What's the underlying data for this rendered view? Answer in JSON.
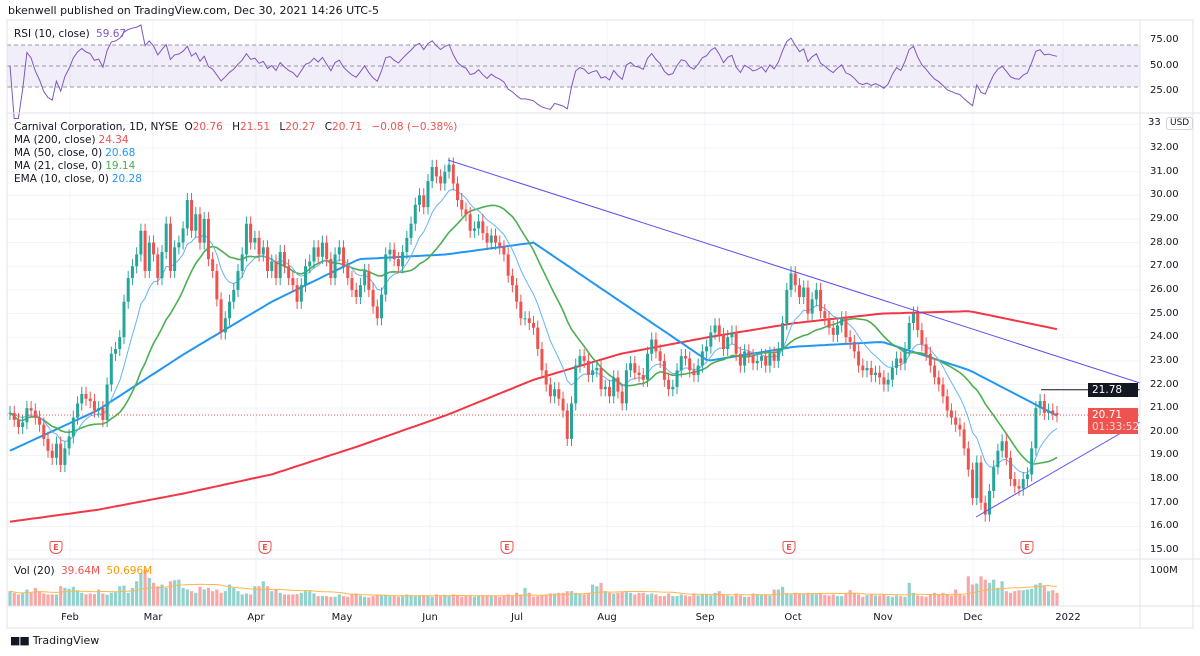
{
  "header": {
    "published": "bkenwell published on TradingView.com, Dec 30, 2021 14:26 UTC-5"
  },
  "rsi_legend": {
    "label": "RSI (10, close)",
    "value": "59.67"
  },
  "main_legend": {
    "symbol": "Carnival Corporation, 1D, NYSE",
    "o_label": "O",
    "o": "20.76",
    "h_label": "H",
    "h": "21.51",
    "l_label": "L",
    "l": "20.27",
    "c_label": "C",
    "c": "20.71",
    "change": "−0.08 (−0.38%)",
    "ma200_label": "MA (200, close)",
    "ma200": "24.34",
    "ma50_label": "MA (50, close, 0)",
    "ma50": "20.68",
    "ma21_label": "MA (21, close, 0)",
    "ma21": "19.14",
    "ema10_label": "EMA (10, close, 0)",
    "ema10": "20.28"
  },
  "volume_legend": {
    "label": "Vol (20)",
    "value": "39.64M",
    "ma_value": "50.696M"
  },
  "price_axis": {
    "currency": "USD",
    "ticks": [
      "32.00",
      "31.00",
      "30.00",
      "29.00",
      "28.00",
      "27.00",
      "26.00",
      "25.00",
      "24.00",
      "23.00",
      "22.00",
      "21.00",
      "20.00",
      "19.00",
      "18.00",
      "17.00",
      "16.00",
      "15.00"
    ],
    "top_partial": "33"
  },
  "rsi_axis": {
    "ticks": [
      "75.00",
      "50.00",
      "25.00"
    ]
  },
  "volume_axis": {
    "ticks": [
      "100M"
    ]
  },
  "last_price": {
    "value": "20.71",
    "countdown": "01:33:52"
  },
  "horizontal_line": {
    "value": "21.78"
  },
  "earnings_marker": "E",
  "time_axis": {
    "ticks": [
      "Feb",
      "Mar",
      "Apr",
      "May",
      "Jun",
      "Jul",
      "Aug",
      "Sep",
      "Oct",
      "Nov",
      "Dec",
      "2022"
    ]
  },
  "footer": {
    "brand": "TradingView"
  },
  "colors": {
    "up": "#26a69a",
    "down": "#ef5350",
    "ma200": "#f23645",
    "ma50": "#2196f3",
    "ma21": "#4caf50",
    "ema10": "#64b5f6",
    "rsi": "#7e57c2",
    "trendline": "#5b4ff5",
    "vol_ma": "#ffb74d"
  },
  "chart_data": {
    "type": "candlestick",
    "price_range": [
      15,
      33
    ],
    "rsi_range": [
      0,
      100
    ],
    "grid": true,
    "closes": [
      20.8,
      20.5,
      20.2,
      20.4,
      21.0,
      20.9,
      20.6,
      20.3,
      19.7,
      19.2,
      18.9,
      19.5,
      18.6,
      19.3,
      19.8,
      20.6,
      21.2,
      21.6,
      21.4,
      21.3,
      20.9,
      21.0,
      20.5,
      22.0,
      23.3,
      23.5,
      24.0,
      25.5,
      26.5,
      27.0,
      27.5,
      28.5,
      26.8,
      28.0,
      27.5,
      26.5,
      27.6,
      28.8,
      26.8,
      27.8,
      28.0,
      28.6,
      29.8,
      28.5,
      29.2,
      28.0,
      29.0,
      27.3,
      26.8,
      25.6,
      24.2,
      24.8,
      25.5,
      26.0,
      26.8,
      27.5,
      28.8,
      28.0,
      28.2,
      27.5,
      27.8,
      26.8,
      27.2,
      26.5,
      27.6,
      27.0,
      26.5,
      26.2,
      25.5,
      26.2,
      27.0,
      27.2,
      27.8,
      27.4,
      28.0,
      27.3,
      26.5,
      27.5,
      27.8,
      27.0,
      26.5,
      26.0,
      25.7,
      26.2,
      26.8,
      26.0,
      25.3,
      24.8,
      25.8,
      27.5,
      27.7,
      27.3,
      27.0,
      27.6,
      28.2,
      28.8,
      29.6,
      30.0,
      29.5,
      30.6,
      31.2,
      30.8,
      30.5,
      31.0,
      31.3,
      30.5,
      29.8,
      29.4,
      29.2,
      28.5,
      28.6,
      28.9,
      28.4,
      28.0,
      28.3,
      28.0,
      27.8,
      27.5,
      26.6,
      26.2,
      25.5,
      24.8,
      24.8,
      24.6,
      24.4,
      23.5,
      22.6,
      22.0,
      21.5,
      21.8,
      21.4,
      20.9,
      19.7,
      21.2,
      22.8,
      23.2,
      23.0,
      22.4,
      22.6,
      22.7,
      21.8,
      21.9,
      21.5,
      22.3,
      21.7,
      21.2,
      22.6,
      22.9,
      22.5,
      22.4,
      22.2,
      23.3,
      23.9,
      23.4,
      23.0,
      22.2,
      21.8,
      21.9,
      22.6,
      23.2,
      23.1,
      22.6,
      22.4,
      22.8,
      23.4,
      23.6,
      24.2,
      24.5,
      24.1,
      23.5,
      24.0,
      24.2,
      23.3,
      22.8,
      23.4,
      23.2,
      22.9,
      23.0,
      23.2,
      22.8,
      23.3,
      23.0,
      23.5,
      24.6,
      26.0,
      26.7,
      26.2,
      25.7,
      26.1,
      25.0,
      25.6,
      26.0,
      25.1,
      24.8,
      24.4,
      24.1,
      24.5,
      24.8,
      24.0,
      23.8,
      23.4,
      22.8,
      22.6,
      22.7,
      22.4,
      22.5,
      22.3,
      22.0,
      22.2,
      22.7,
      23.1,
      22.9,
      23.5,
      24.6,
      25.0,
      24.3,
      23.7,
      23.3,
      22.8,
      22.3,
      22.0,
      21.5,
      20.9,
      20.6,
      20.3,
      20.1,
      19.3,
      18.4,
      17.2,
      18.7,
      17.0,
      16.5,
      17.5,
      18.5,
      19.2,
      19.6,
      18.9,
      18.0,
      17.7,
      17.6,
      18.0,
      18.2,
      19.3,
      21.0,
      21.3,
      20.8,
      20.9,
      20.79,
      20.71
    ],
    "volume_millions": [
      45,
      40,
      35,
      38,
      50,
      40,
      55,
      45,
      38,
      35,
      35,
      35,
      60,
      55,
      52,
      58,
      48,
      40,
      35,
      38,
      36,
      50,
      38,
      34,
      40,
      42,
      60,
      62,
      40,
      55,
      75,
      100,
      110,
      85,
      70,
      60,
      65,
      55,
      75,
      78,
      80,
      55,
      50,
      45,
      40,
      58,
      50,
      55,
      45,
      50,
      40,
      45,
      65,
      55,
      45,
      35,
      38,
      35,
      60,
      60,
      75,
      60,
      45,
      50,
      40,
      35,
      35,
      35,
      36,
      40,
      45,
      45,
      38,
      30,
      30,
      30,
      28,
      28,
      35,
      30,
      28,
      35,
      38,
      32,
      28,
      26,
      30,
      32,
      34,
      34,
      30,
      30,
      28,
      30,
      35,
      33,
      30,
      30,
      32,
      32,
      28,
      35,
      32,
      34,
      32,
      35,
      32,
      28,
      30,
      32,
      28,
      30,
      30,
      32,
      30,
      30,
      28,
      32,
      35,
      32,
      40,
      35,
      55,
      40,
      28,
      30,
      32,
      35,
      38,
      38,
      40,
      40,
      45,
      45,
      40,
      38,
      35,
      40,
      65,
      60,
      70,
      45,
      40,
      38,
      40,
      42,
      42,
      40,
      35,
      40,
      40,
      35,
      38,
      35,
      30,
      30,
      38,
      30,
      30,
      35,
      32,
      30,
      38,
      32,
      35,
      36,
      32,
      40,
      45,
      35,
      32,
      30,
      38,
      32,
      28,
      28,
      38,
      36,
      34,
      34,
      32,
      50,
      50,
      58,
      38,
      35,
      40,
      38,
      36,
      40,
      38,
      36,
      38,
      34,
      32,
      35,
      30,
      30,
      40,
      48,
      38,
      35,
      28,
      33,
      36,
      32,
      32,
      35,
      30,
      28,
      32,
      30,
      28,
      70,
      40,
      32,
      30,
      28,
      35,
      40,
      35,
      40,
      36,
      32,
      50,
      35,
      32,
      90,
      65,
      68,
      90,
      80,
      70,
      80,
      55,
      75,
      45,
      40,
      45,
      48,
      48,
      50,
      52,
      65,
      70,
      60,
      45,
      48,
      39.64
    ],
    "ma200_month_start": {
      "Jan": 16.2,
      "Feb": 16.7,
      "Mar": 17.4,
      "Apr": 18.2,
      "May": 19.4,
      "Jun": 20.7,
      "Jul": 22.2,
      "Aug": 23.3,
      "Sep": 24.0,
      "Oct": 24.6,
      "Nov": 25.0,
      "Dec": 25.1,
      "end": 24.34
    },
    "ma50_month_start": {
      "Jan": 19.2,
      "Feb": 20.9,
      "Mar": 23.3,
      "Apr": 25.5,
      "May": 27.3,
      "Jun": 27.5,
      "Jul": 28.0,
      "Aug": 25.5,
      "Sep": 23.0,
      "Oct": 23.6,
      "Nov": 23.8,
      "Dec": 22.6,
      "end": 20.68
    },
    "rsi_levels": [
      70,
      50,
      30
    ]
  }
}
